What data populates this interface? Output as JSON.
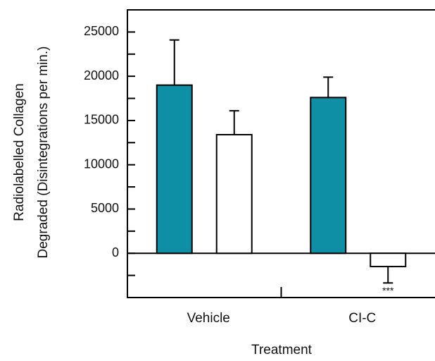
{
  "chart_data": {
    "type": "bar",
    "ylabel": [
      "Radiolabelled Collagen",
      "Degraded (Disintegrations per min.)"
    ],
    "xlabel": "Treatment",
    "categories": [
      "Vehicle",
      "CI-C"
    ],
    "series": [
      {
        "color": "#0f8fa6",
        "values": [
          19000,
          17600
        ],
        "errors": [
          5100,
          2300
        ]
      },
      {
        "color": "#ffffff",
        "values": [
          13400,
          -1500
        ],
        "errors": [
          2700,
          1850
        ]
      }
    ],
    "annotations": [
      {
        "text": "***",
        "series": 1,
        "category": 1
      }
    ],
    "ylim": [
      -5000,
      27500
    ],
    "yticks": [
      0,
      5000,
      10000,
      15000,
      20000,
      25000
    ],
    "yminorticks": [
      -2500,
      2500,
      7500,
      12500,
      17500,
      22500
    ]
  }
}
